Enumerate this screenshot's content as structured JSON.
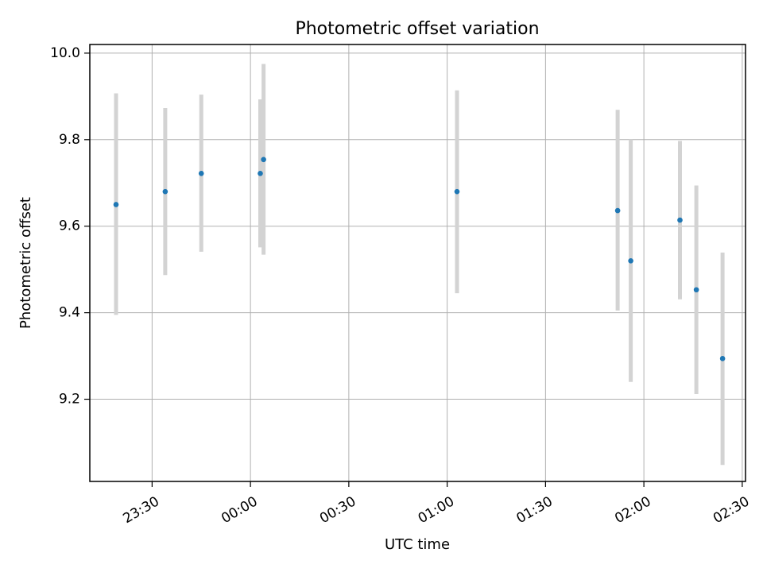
{
  "chart_data": {
    "type": "scatter",
    "title": "Photometric offset variation",
    "xlabel": "UTC time",
    "ylabel": "Photometric offset",
    "x_tick_labels": [
      "23:30",
      "00:00",
      "00:30",
      "01:00",
      "01:30",
      "02:00",
      "02:30"
    ],
    "x_ticks": [
      "23:30",
      "24:00",
      "24:30",
      "25:00",
      "25:30",
      "26:00",
      "26:30"
    ],
    "y_tick_labels": [
      "9.2",
      "9.4",
      "9.6",
      "9.8",
      "10.0"
    ],
    "y_ticks": [
      9.2,
      9.4,
      9.6,
      9.8,
      10.0
    ],
    "xlim": [
      "23:11",
      "26:31"
    ],
    "ylim": [
      9.01,
      10.02
    ],
    "grid": true,
    "points": [
      {
        "x": "23:19",
        "y": 9.65,
        "yerr_low": 9.395,
        "yerr_high": 9.907
      },
      {
        "x": "23:34",
        "y": 9.68,
        "yerr_low": 9.487,
        "yerr_high": 9.873
      },
      {
        "x": "23:45",
        "y": 9.722,
        "yerr_low": 9.541,
        "yerr_high": 9.904
      },
      {
        "x": "24:03",
        "y": 9.722,
        "yerr_low": 9.551,
        "yerr_high": 9.893
      },
      {
        "x": "24:04",
        "y": 9.754,
        "yerr_low": 9.534,
        "yerr_high": 9.975
      },
      {
        "x": "25:03",
        "y": 9.68,
        "yerr_low": 9.445,
        "yerr_high": 9.914
      },
      {
        "x": "25:52",
        "y": 9.636,
        "yerr_low": 9.405,
        "yerr_high": 9.869
      },
      {
        "x": "25:56",
        "y": 9.52,
        "yerr_low": 9.24,
        "yerr_high": 9.8
      },
      {
        "x": "26:11",
        "y": 9.614,
        "yerr_low": 9.431,
        "yerr_high": 9.797
      },
      {
        "x": "26:16",
        "y": 9.453,
        "yerr_low": 9.212,
        "yerr_high": 9.694
      },
      {
        "x": "26:24",
        "y": 9.294,
        "yerr_low": 9.048,
        "yerr_high": 9.539
      }
    ],
    "colors": {
      "marker": "#1f77b4",
      "errorbar": "#d3d3d3",
      "grid": "#b0b0b0",
      "axes": "#000000"
    }
  }
}
